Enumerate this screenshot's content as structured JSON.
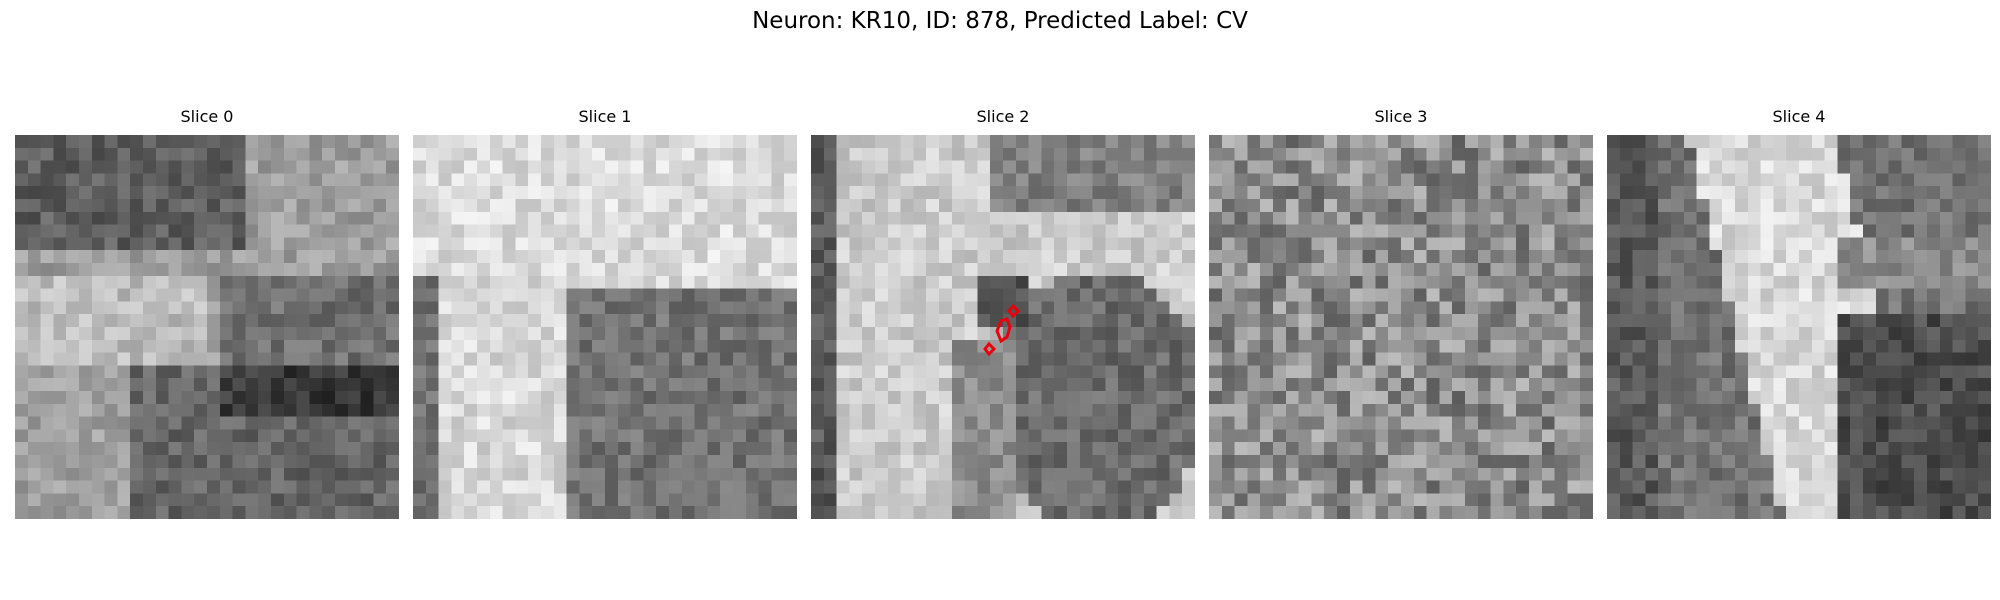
{
  "figure": {
    "title": "Neuron: KR10, ID: 878, Predicted Label: CV"
  },
  "panels": [
    {
      "title": "Slice 0",
      "pattern": "mixed-dark-top",
      "seed": 11
    },
    {
      "title": "Slice 1",
      "pattern": "bright-left-dark-right",
      "seed": 23
    },
    {
      "title": "Slice 2",
      "pattern": "bright-band-dark-blob",
      "seed": 37,
      "has_contours": true
    },
    {
      "title": "Slice 3",
      "pattern": "noise",
      "seed": 41
    },
    {
      "title": "Slice 4",
      "pattern": "diagonal-band",
      "seed": 53
    }
  ],
  "colors": {
    "contour": "#e8000b"
  }
}
